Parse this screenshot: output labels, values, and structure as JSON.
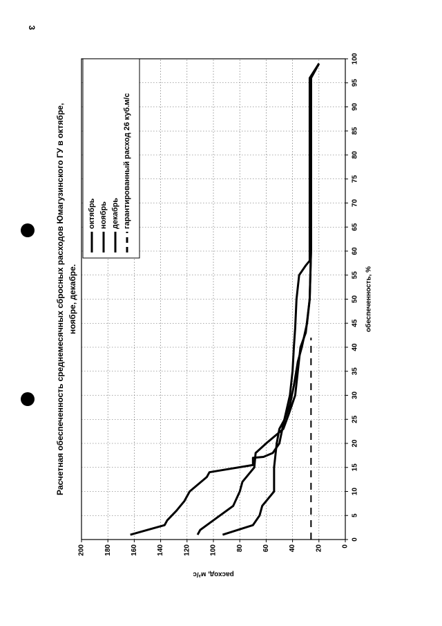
{
  "page_number": "3",
  "chart_data": {
    "type": "line",
    "title_lines": [
      "Расчетная обеспеченность среднемесячных сбросных расходов Юмагузинского ГУ в октябре,",
      "ноябре, декабре."
    ],
    "x_label": "обеспеченность, %",
    "y_label": "расход, м³/с",
    "xlim": [
      0,
      100
    ],
    "ylim": [
      0,
      200
    ],
    "xticks": [
      0,
      5,
      10,
      15,
      20,
      25,
      30,
      35,
      40,
      45,
      50,
      55,
      60,
      65,
      70,
      75,
      80,
      85,
      90,
      95,
      100
    ],
    "yticks": [
      0,
      20,
      40,
      60,
      80,
      100,
      120,
      140,
      160,
      180,
      200
    ],
    "grid": true,
    "legend": "upper right",
    "series": [
      {
        "name": "октябрь",
        "color": "#000000",
        "style": "solid",
        "x": [
          1,
          3,
          4,
          6,
          7,
          8,
          10,
          13,
          14,
          15.5,
          17,
          17.2,
          18,
          20,
          24,
          30,
          35,
          40,
          44,
          50,
          55,
          57,
          58,
          96,
          99
        ],
        "values": [
          163,
          137,
          135,
          128,
          125,
          122,
          118,
          105,
          103,
          70,
          70,
          62,
          55,
          50,
          47,
          42,
          40,
          39,
          38,
          37,
          35,
          30,
          27,
          27,
          20
        ]
      },
      {
        "name": "ноябрь",
        "color": "#000000",
        "style": "solid",
        "x": [
          1,
          2,
          4,
          7,
          10,
          12,
          14,
          15,
          18,
          20,
          23,
          26,
          30,
          35,
          40,
          43,
          50,
          60,
          96,
          99
        ],
        "values": [
          112,
          110,
          100,
          85,
          80,
          78,
          72,
          69,
          68,
          60,
          47,
          43,
          38,
          36,
          34,
          30,
          27,
          26,
          26,
          20
        ]
      },
      {
        "name": "декабрь",
        "color": "#000000",
        "style": "solid",
        "x": [
          1,
          3,
          5,
          7,
          10,
          15,
          20,
          23,
          25,
          28,
          32,
          37,
          40,
          45,
          50,
          60,
          96,
          99
        ],
        "values": [
          93,
          70,
          65,
          63,
          54,
          54,
          52,
          50,
          46,
          42,
          39,
          36,
          33,
          29,
          27,
          26,
          26,
          20
        ]
      },
      {
        "name": "гарантированный расход 26 куб.м/с",
        "color": "#000000",
        "style": "dashed",
        "x": [
          0,
          42
        ],
        "values": [
          26,
          26
        ]
      }
    ]
  }
}
